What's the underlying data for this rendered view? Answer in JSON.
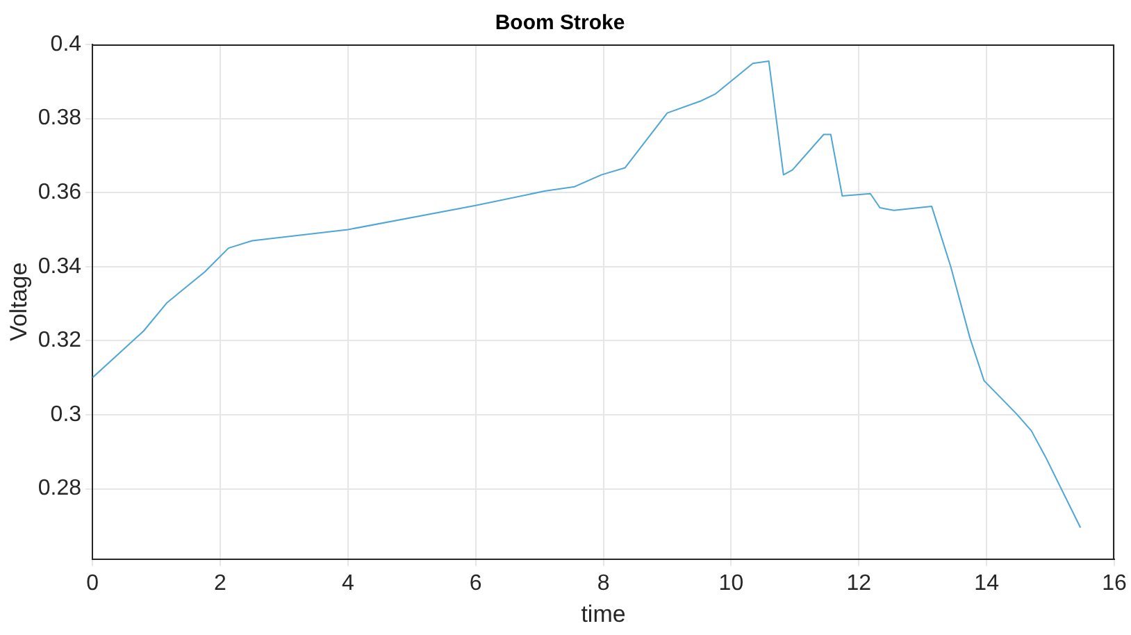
{
  "chart_data": {
    "type": "line",
    "title": "Boom Stroke",
    "xlabel": "time",
    "ylabel": "Voltage",
    "xlim": [
      0,
      16
    ],
    "xticks": [
      0,
      2,
      4,
      6,
      8,
      10,
      12,
      14,
      16
    ],
    "ylim": [
      0.261,
      0.4
    ],
    "yticks": [
      0.28,
      0.3,
      0.32,
      0.34,
      0.36,
      0.38,
      0.4
    ],
    "grid": true,
    "legend": false,
    "marker": "none",
    "line_style": "solid",
    "series": [
      {
        "color": "#4da6d6",
        "x": [
          0,
          0.8,
          1.17,
          1.76,
          2.13,
          2.5,
          4,
          6,
          7.08,
          7.55,
          7.97,
          8.34,
          9.0,
          9.52,
          9.75,
          10.34,
          10.59,
          10.82,
          10.96,
          11.45,
          11.56,
          11.74,
          12.18,
          12.33,
          12.55,
          13.14,
          13.44,
          13.74,
          13.96,
          14.47,
          14.7,
          14.92,
          15.47
        ],
        "values": [
          0.31,
          0.3226,
          0.3303,
          0.3386,
          0.345,
          0.347,
          0.35,
          0.3565,
          0.3604,
          0.3616,
          0.3648,
          0.3667,
          0.3815,
          0.3847,
          0.3866,
          0.3949,
          0.3955,
          0.3648,
          0.3661,
          0.3757,
          0.3757,
          0.3591,
          0.3597,
          0.3559,
          0.3552,
          0.3563,
          0.3399,
          0.3207,
          0.3092,
          0.3002,
          0.2957,
          0.2887,
          0.2695
        ]
      }
    ]
  }
}
